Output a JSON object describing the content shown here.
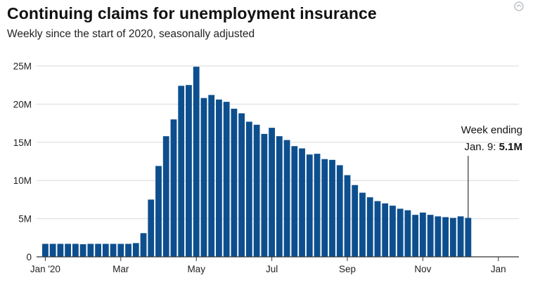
{
  "chart_data": {
    "type": "bar",
    "title": "Continuing claims for unemployment insurance",
    "subtitle": "Weekly since the start of 2020, seasonally adjusted",
    "xlabel": "",
    "ylabel": "",
    "ylim": [
      0,
      25000000
    ],
    "y_ticks": [
      {
        "value": 0,
        "label": "0"
      },
      {
        "value": 5000000,
        "label": "5M"
      },
      {
        "value": 10000000,
        "label": "10M"
      },
      {
        "value": 15000000,
        "label": "15M"
      },
      {
        "value": 20000000,
        "label": "20M"
      },
      {
        "value": 25000000,
        "label": "25M"
      }
    ],
    "x_ticks": [
      {
        "index": 0,
        "label": "Jan '20"
      },
      {
        "index": 10,
        "label": "Mar"
      },
      {
        "index": 20,
        "label": "May"
      },
      {
        "index": 30,
        "label": "Jul"
      },
      {
        "index": 40,
        "label": "Sep"
      },
      {
        "index": 50,
        "label": "Nov"
      },
      {
        "index": 60,
        "label": "Jan"
      }
    ],
    "grid": true,
    "bar_color": "#0d4f8e",
    "values": [
      1700000,
      1700000,
      1700000,
      1700000,
      1700000,
      1650000,
      1700000,
      1700000,
      1700000,
      1700000,
      1700000,
      1700000,
      1800000,
      3100000,
      7500000,
      11900000,
      15800000,
      18000000,
      22400000,
      22500000,
      24900000,
      20800000,
      21200000,
      20600000,
      20300000,
      19400000,
      18800000,
      17700000,
      17300000,
      16100000,
      16900000,
      15800000,
      15300000,
      14500000,
      14200000,
      13400000,
      13500000,
      12800000,
      12700000,
      12000000,
      10700000,
      9400000,
      8400000,
      7800000,
      7300000,
      7000000,
      6700000,
      6300000,
      6100000,
      5500000,
      5800000,
      5500000,
      5300000,
      5200000,
      5100000,
      5300000,
      5100000
    ],
    "annotation": {
      "index": 56,
      "line1": "Week ending",
      "line2_prefix": "Jan. 9: ",
      "line2_value": "5.1M"
    }
  }
}
